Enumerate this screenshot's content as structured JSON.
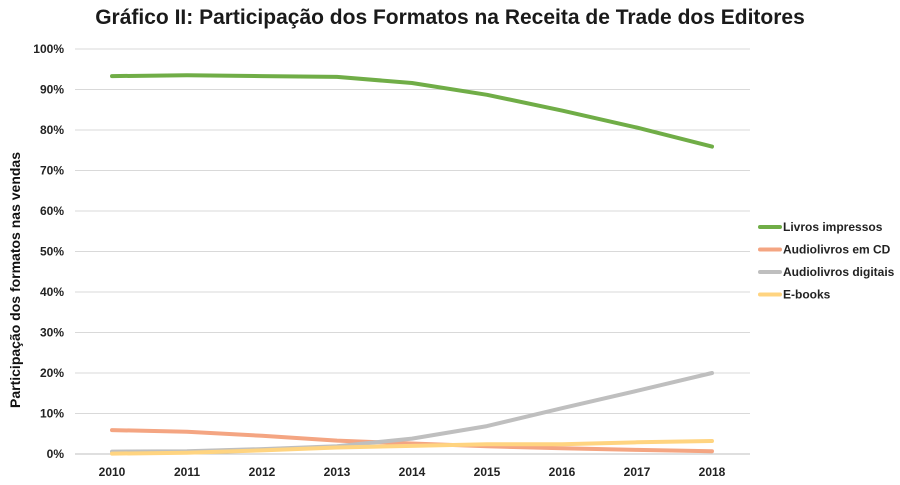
{
  "chart_data": {
    "type": "line",
    "title": "Gráfico II:  Participação dos Formatos na Receita de Trade dos Editores",
    "xlabel": "",
    "ylabel": "Participação dos formatos nas vendas",
    "categories": [
      "2010",
      "2011",
      "2012",
      "2013",
      "2014",
      "2015",
      "2016",
      "2017",
      "2018"
    ],
    "ylim": [
      0,
      100
    ],
    "yticks": [
      "0%",
      "10%",
      "20%",
      "30%",
      "40%",
      "50%",
      "60%",
      "70%",
      "80%",
      "90%",
      "100%"
    ],
    "grid": true,
    "legend_position": "right",
    "series": [
      {
        "name": "Livros impressos",
        "color": "#70ad47",
        "values": [
          93.3,
          93.5,
          93.3,
          93.1,
          91.6,
          88.7,
          84.8,
          80.6,
          75.9
        ]
      },
      {
        "name": "Audiolivros em CD",
        "color": "#f4a582",
        "values": [
          5.9,
          5.5,
          4.5,
          3.3,
          2.6,
          1.9,
          1.4,
          1.0,
          0.7
        ]
      },
      {
        "name": "Audiolivros digitais",
        "color": "#bfbfbf",
        "values": [
          0.6,
          0.7,
          1.2,
          1.9,
          3.8,
          6.9,
          11.3,
          15.6,
          20.0
        ]
      },
      {
        "name": "E-books",
        "color": "#ffd480",
        "values": [
          0.1,
          0.3,
          0.9,
          1.6,
          2.0,
          2.4,
          2.4,
          2.9,
          3.2
        ]
      }
    ]
  }
}
